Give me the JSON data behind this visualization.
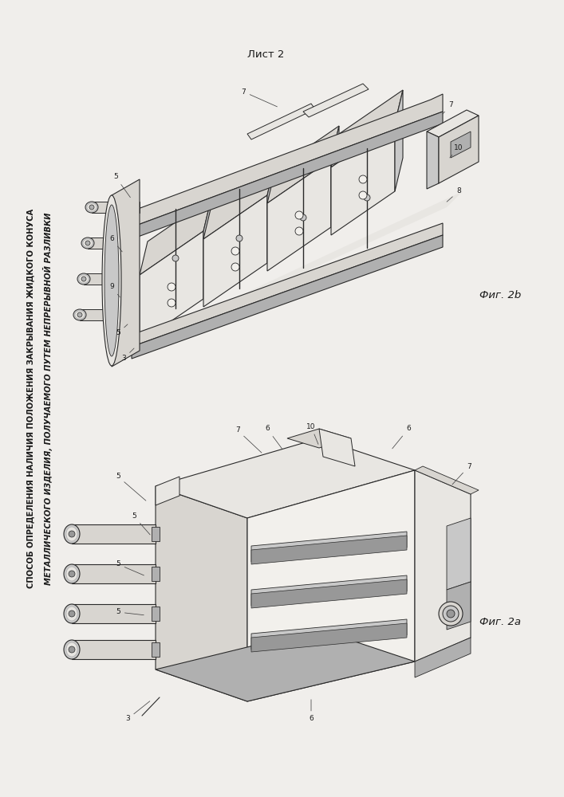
{
  "page_bg": "#f0eeeb",
  "text_color": "#1a1a1a",
  "title_line1": "СПОСОБ ОПРЕДЕЛЕНИЯ НАЛИЧИЯ ПОЛОЖЕНИЯ ЗАКРЫВАНИЯ ЖИДКОГО КОНУСА",
  "title_line2": "МЕТАЛЛИЧЕСКОГО ИЗДЕЛИЯ, ПОЛУЧАЕМОГО ПУТЕМ НЕПРЕРЫВНОЙ РАЗЛИВКИ",
  "sheet_label": "Лист 2",
  "fig_top_label": "Фиг. 2b",
  "fig_bottom_label": "Фиг. 2a",
  "title_fontsize": 7.2,
  "sheet_fontsize": 9.5,
  "fig_label_fontsize": 9.5,
  "drawing_line_color": "#2a2a2a",
  "gray1": "#c8c8c8",
  "gray2": "#b0b0b0",
  "gray3": "#989898",
  "gray4": "#808080",
  "gray5": "#e8e6e2",
  "gray6": "#d8d5d0",
  "gray7": "#f2f0ec"
}
